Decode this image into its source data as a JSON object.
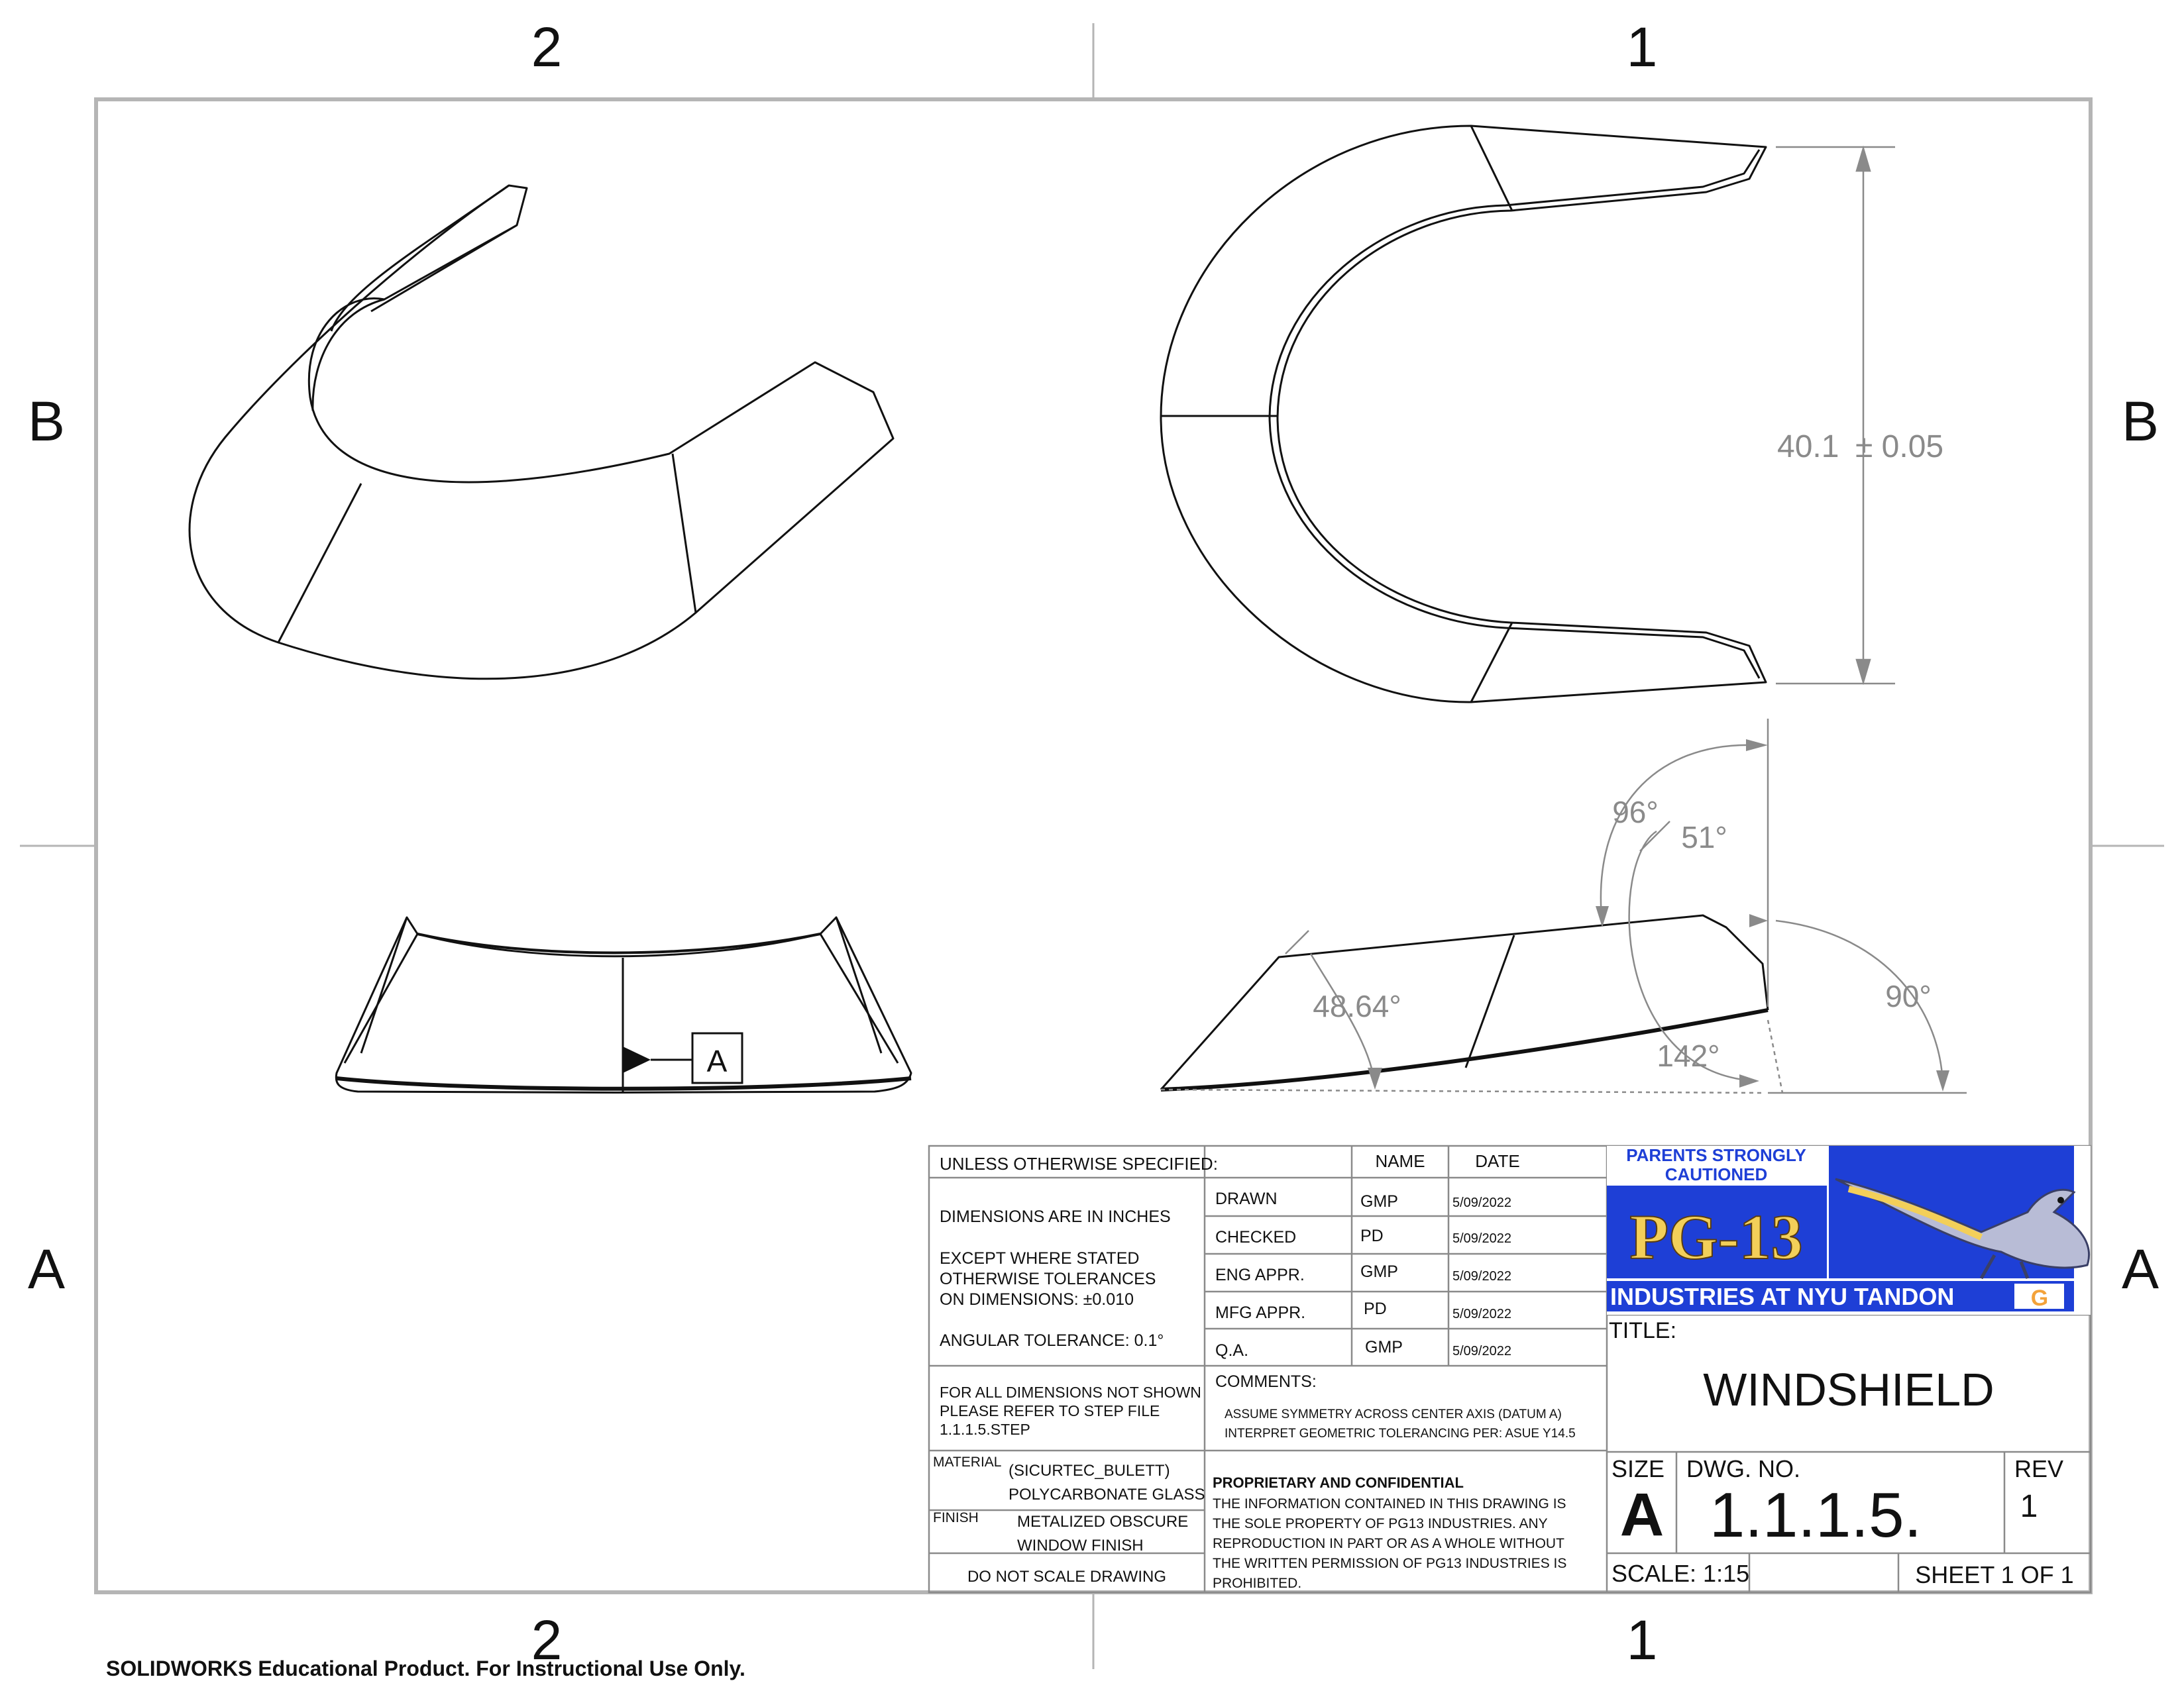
{
  "zones": {
    "top": [
      "2",
      "1"
    ],
    "bottom": [
      "2",
      "1"
    ],
    "left": [
      "B",
      "A"
    ],
    "right": [
      "B",
      "A"
    ]
  },
  "dimensions": {
    "height": "40.1",
    "height_tol": "± 0.05",
    "angle_96": "96°",
    "angle_51": "51°",
    "angle_4864": "48.64°",
    "angle_142": "142°",
    "angle_90": "90°"
  },
  "datum": {
    "label": "A"
  },
  "title_block": {
    "unless_specified": "UNLESS OTHERWISE SPECIFIED:",
    "name_header": "NAME",
    "date_header": "DATE",
    "dims_in_inches": "DIMENSIONS ARE IN INCHES",
    "tolerance_1": "EXCEPT WHERE STATED",
    "tolerance_2": "OTHERWISE TOLERANCES",
    "tolerance_3": "ON DIMENSIONS: ±0.010",
    "angular_tol": "ANGULAR TOLERANCE: 0.1°",
    "step_note_1": "FOR ALL DIMENSIONS NOT SHOWN",
    "step_note_2": "PLEASE REFER TO STEP FILE",
    "step_note_3": "1.1.1.5.STEP",
    "material_label": "MATERIAL",
    "material_1": "(SICURTEC_BULETT)",
    "material_2": "POLYCARBONATE GLASS",
    "finish_label": "FINISH",
    "finish_1": "METALIZED OBSCURE",
    "finish_2": "WINDOW FINISH",
    "do_not_scale": "DO NOT SCALE DRAWING",
    "approvals": [
      {
        "role": "DRAWN",
        "name": "GMP",
        "date": "5/09/2022"
      },
      {
        "role": "CHECKED",
        "name": "PD",
        "date": "5/09/2022"
      },
      {
        "role": "ENG APPR.",
        "name": "GMP",
        "date": "5/09/2022"
      },
      {
        "role": "MFG APPR.",
        "name": "PD",
        "date": "5/09/2022"
      },
      {
        "role": "Q.A.",
        "name": "GMP",
        "date": "5/09/2022"
      }
    ],
    "comments_label": "COMMENTS:",
    "comment_1": "ASSUME SYMMETRY ACROSS CENTER AXIS (DATUM A)",
    "comment_2": "INTERPRET GEOMETRIC TOLERANCING PER: ASUE Y14.5",
    "proprietary_title": "PROPRIETARY AND CONFIDENTIAL",
    "proprietary_1": "THE INFORMATION CONTAINED IN THIS DRAWING IS",
    "proprietary_2": "THE SOLE PROPERTY OF PG13 INDUSTRIES.  ANY",
    "proprietary_3": "REPRODUCTION IN PART OR AS A WHOLE WITHOUT",
    "proprietary_4": "THE WRITTEN PERMISSION OF PG13 INDUSTRIES IS",
    "proprietary_5": "PROHIBITED.",
    "title_label": "TITLE:",
    "title": "WINDSHIELD",
    "size_label": "SIZE",
    "size": "A",
    "dwg_no_label": "DWG.  NO.",
    "dwg_no": "1.1.1.5.",
    "rev_label": "REV",
    "rev": "1",
    "scale": "SCALE: 1:15",
    "sheet": "SHEET 1 OF 1"
  },
  "logo": {
    "line_1": "PARENTS STRONGLY",
    "line_2": "CAUTIONED",
    "rating": "PG-13",
    "industries": "INDUSTRIES AT NYU TANDON",
    "badge": "G",
    "colors": {
      "blue": "#1e3fd6",
      "gold": "#f3cf59",
      "white": "#ffffff"
    }
  },
  "footer": {
    "edu_notice": "SOLIDWORKS Educational Product. For Instructional Use Only."
  }
}
